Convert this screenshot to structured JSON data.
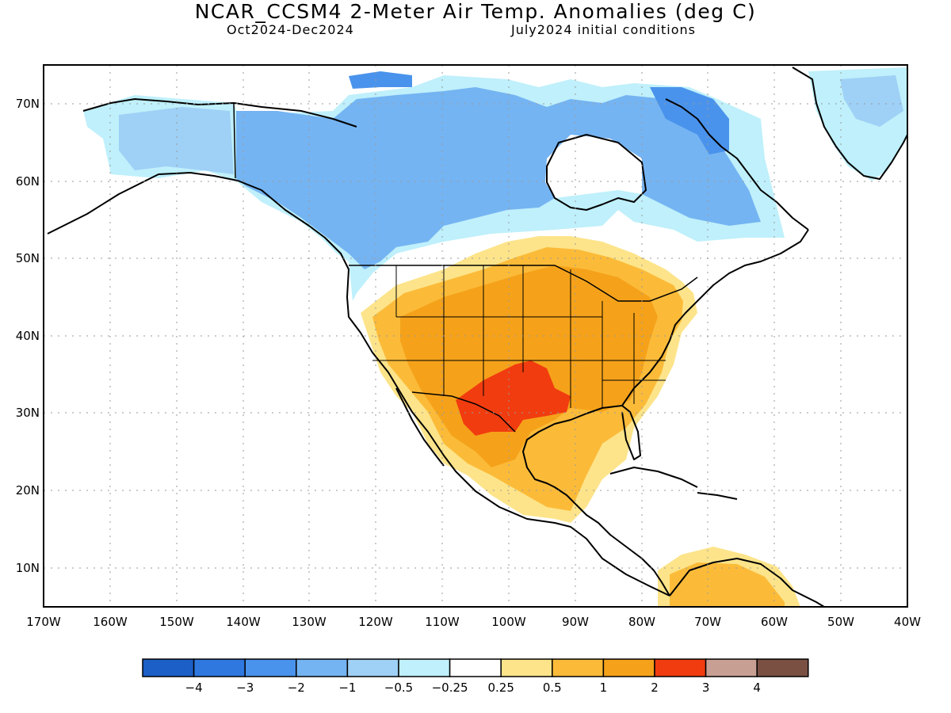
{
  "title": "NCAR_CCSM4 2-Meter Air Temp. Anomalies (deg C)",
  "period": "Oct2024-Dec2024",
  "initial_conditions": "July2024 initial conditions",
  "lat_labels": [
    "70N",
    "60N",
    "50N",
    "40N",
    "30N",
    "20N",
    "10N"
  ],
  "lon_labels": [
    "170W",
    "160W",
    "150W",
    "140W",
    "130W",
    "120W",
    "110W",
    "100W",
    "90W",
    "80W",
    "70W",
    "60W",
    "50W",
    "40W"
  ],
  "colorbar": {
    "colors": [
      "#1c5fc7",
      "#2e78e0",
      "#4a93ec",
      "#75b4f2",
      "#9fd0f6",
      "#bff0fb",
      "#ffffff",
      "#fde48a",
      "#fbbb39",
      "#f5a21a",
      "#f13c0f",
      "#c8a093",
      "#7a5043"
    ],
    "labels": [
      "−4",
      "−3",
      "−2",
      "−1",
      "−0.5",
      "−0.25",
      "0.25",
      "0.5",
      "1",
      "2",
      "3",
      "4"
    ]
  },
  "map_colors": {
    "cold_light": "#bff0fb",
    "cold": "#9fd0f6",
    "cold_mid": "#75b4f2",
    "cold_strong": "#4a93ec",
    "warm_light": "#fde48a",
    "warm": "#fbbb39",
    "warm_mid": "#f5a21a",
    "hot": "#f13c0f"
  }
}
